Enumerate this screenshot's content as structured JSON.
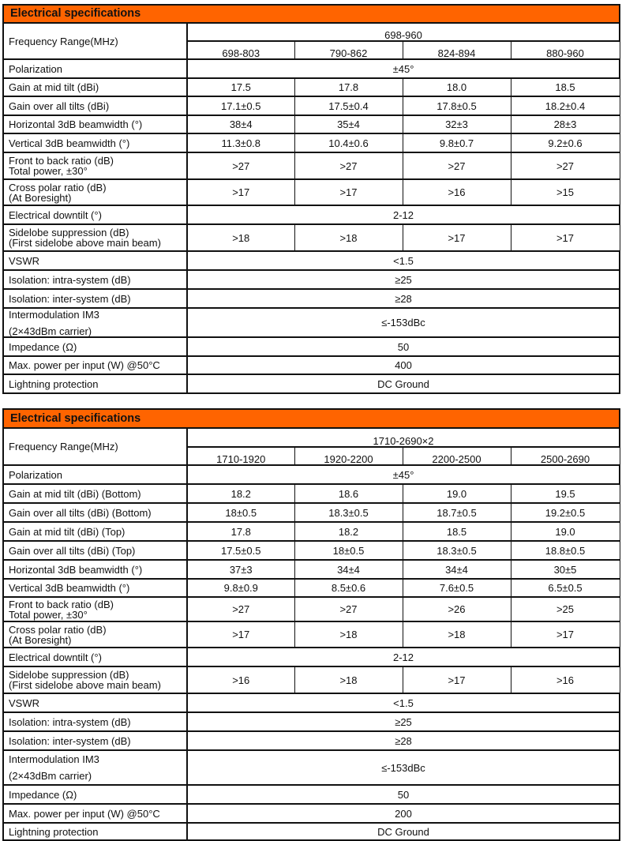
{
  "tables": [
    {
      "title": "Electrical specifications",
      "freq_label": "Frequency Range(MHz)",
      "freq_span": "698-960",
      "bands": [
        "698-803",
        "790-862",
        "824-894",
        "880-960"
      ],
      "rows": [
        {
          "label": [
            "Polarization"
          ],
          "span": "±45°"
        },
        {
          "label": [
            "Gain at mid tilt (dBi)"
          ],
          "values": [
            "17.5",
            "17.8",
            "18.0",
            "18.5"
          ]
        },
        {
          "label": [
            "Gain over all tilts (dBi)"
          ],
          "values": [
            "17.1±0.5",
            "17.5±0.4",
            "17.8±0.5",
            "18.2±0.4"
          ]
        },
        {
          "label": [
            "Horizontal 3dB beamwidth (°)"
          ],
          "values": [
            "38±4",
            "35±4",
            "32±3",
            "28±3"
          ]
        },
        {
          "label": [
            "Vertical 3dB beamwidth (°)"
          ],
          "values": [
            "11.3±0.8",
            "10.4±0.6",
            "9.8±0.7",
            "9.2±0.6"
          ]
        },
        {
          "label": [
            "Front to back ratio (dB)",
            "Total power, ±30°"
          ],
          "values": [
            ">27",
            ">27",
            ">27",
            ">27"
          ]
        },
        {
          "label": [
            "Cross polar ratio (dB)",
            "(At Boresight)"
          ],
          "values": [
            ">17",
            ">17",
            ">16",
            ">15"
          ]
        },
        {
          "label": [
            "Electrical downtilt (°)"
          ],
          "span": "2-12"
        },
        {
          "label": [
            "Sidelobe suppression (dB)",
            "(First sidelobe above main beam)"
          ],
          "values": [
            ">18",
            ">18",
            ">17",
            ">17"
          ]
        },
        {
          "label": [
            "VSWR"
          ],
          "span": "<1.5"
        },
        {
          "label": [
            "Isolation: intra-system (dB)"
          ],
          "span": "≥25"
        },
        {
          "label": [
            "Isolation: inter-system (dB)"
          ],
          "span": "≥28"
        },
        {
          "label": [
            "Intermodulation IM3",
            "(2×43dBm carrier)"
          ],
          "span": "≤-153dBc"
        },
        {
          "label": [
            "Impedance (Ω)"
          ],
          "span": "50"
        },
        {
          "label": [
            "Max. power per input (W) @50°C"
          ],
          "span": "400"
        },
        {
          "label": [
            "Lightning protection"
          ],
          "span": "DC Ground"
        }
      ]
    },
    {
      "title": "Electrical specifications",
      "freq_label": "Frequency Range(MHz)",
      "freq_span": "1710-2690×2",
      "bands": [
        "1710-1920",
        "1920-2200",
        "2200-2500",
        "2500-2690"
      ],
      "rows": [
        {
          "label": [
            "Polarization"
          ],
          "span": "±45°"
        },
        {
          "label": [
            "Gain at mid tilt (dBi) (Bottom)"
          ],
          "values": [
            "18.2",
            "18.6",
            "19.0",
            "19.5"
          ]
        },
        {
          "label": [
            "Gain over all tilts (dBi) (Bottom)"
          ],
          "values": [
            "18±0.5",
            "18.3±0.5",
            "18.7±0.5",
            "19.2±0.5"
          ]
        },
        {
          "label": [
            "Gain at mid tilt (dBi) (Top)"
          ],
          "values": [
            "17.8",
            "18.2",
            "18.5",
            "19.0"
          ]
        },
        {
          "label": [
            "Gain over all tilts (dBi) (Top)"
          ],
          "values": [
            "17.5±0.5",
            "18±0.5",
            "18.3±0.5",
            "18.8±0.5"
          ]
        },
        {
          "label": [
            "Horizontal 3dB beamwidth (°)"
          ],
          "values": [
            "37±3",
            "34±4",
            "34±4",
            "30±5"
          ]
        },
        {
          "label": [
            "Vertical 3dB beamwidth (°)"
          ],
          "values": [
            "9.8±0.9",
            "8.5±0.6",
            "7.6±0.5",
            "6.5±0.5"
          ]
        },
        {
          "label": [
            "Front to back ratio (dB)",
            "Total power, ±30°"
          ],
          "values": [
            ">27",
            ">27",
            ">26",
            ">25"
          ]
        },
        {
          "label": [
            "Cross polar ratio (dB)",
            "(At Boresight)"
          ],
          "values": [
            ">17",
            ">18",
            ">18",
            ">17"
          ]
        },
        {
          "label": [
            "Electrical downtilt (°)"
          ],
          "span": "2-12"
        },
        {
          "label": [
            "Sidelobe suppression (dB)",
            "(First sidelobe above main beam)"
          ],
          "values": [
            ">16",
            ">18",
            ">17",
            ">16"
          ]
        },
        {
          "label": [
            "VSWR"
          ],
          "span": "<1.5"
        },
        {
          "label": [
            "Isolation: intra-system (dB)"
          ],
          "span": "≥25"
        },
        {
          "label": [
            "Isolation: inter-system (dB)"
          ],
          "span": "≥28"
        },
        {
          "label": [
            "Intermodulation IM3",
            "(2×43dBm carrier)"
          ],
          "span": "≤-153dBc"
        },
        {
          "label": [
            "Impedance (Ω)"
          ],
          "span": "50"
        },
        {
          "label": [
            "Max. power per input (W) @50°C"
          ],
          "span": "200"
        },
        {
          "label": [
            "Lightning protection"
          ],
          "span": "DC Ground"
        }
      ]
    }
  ],
  "colors": {
    "header_bg": "#ff6400",
    "border": "#111111"
  }
}
